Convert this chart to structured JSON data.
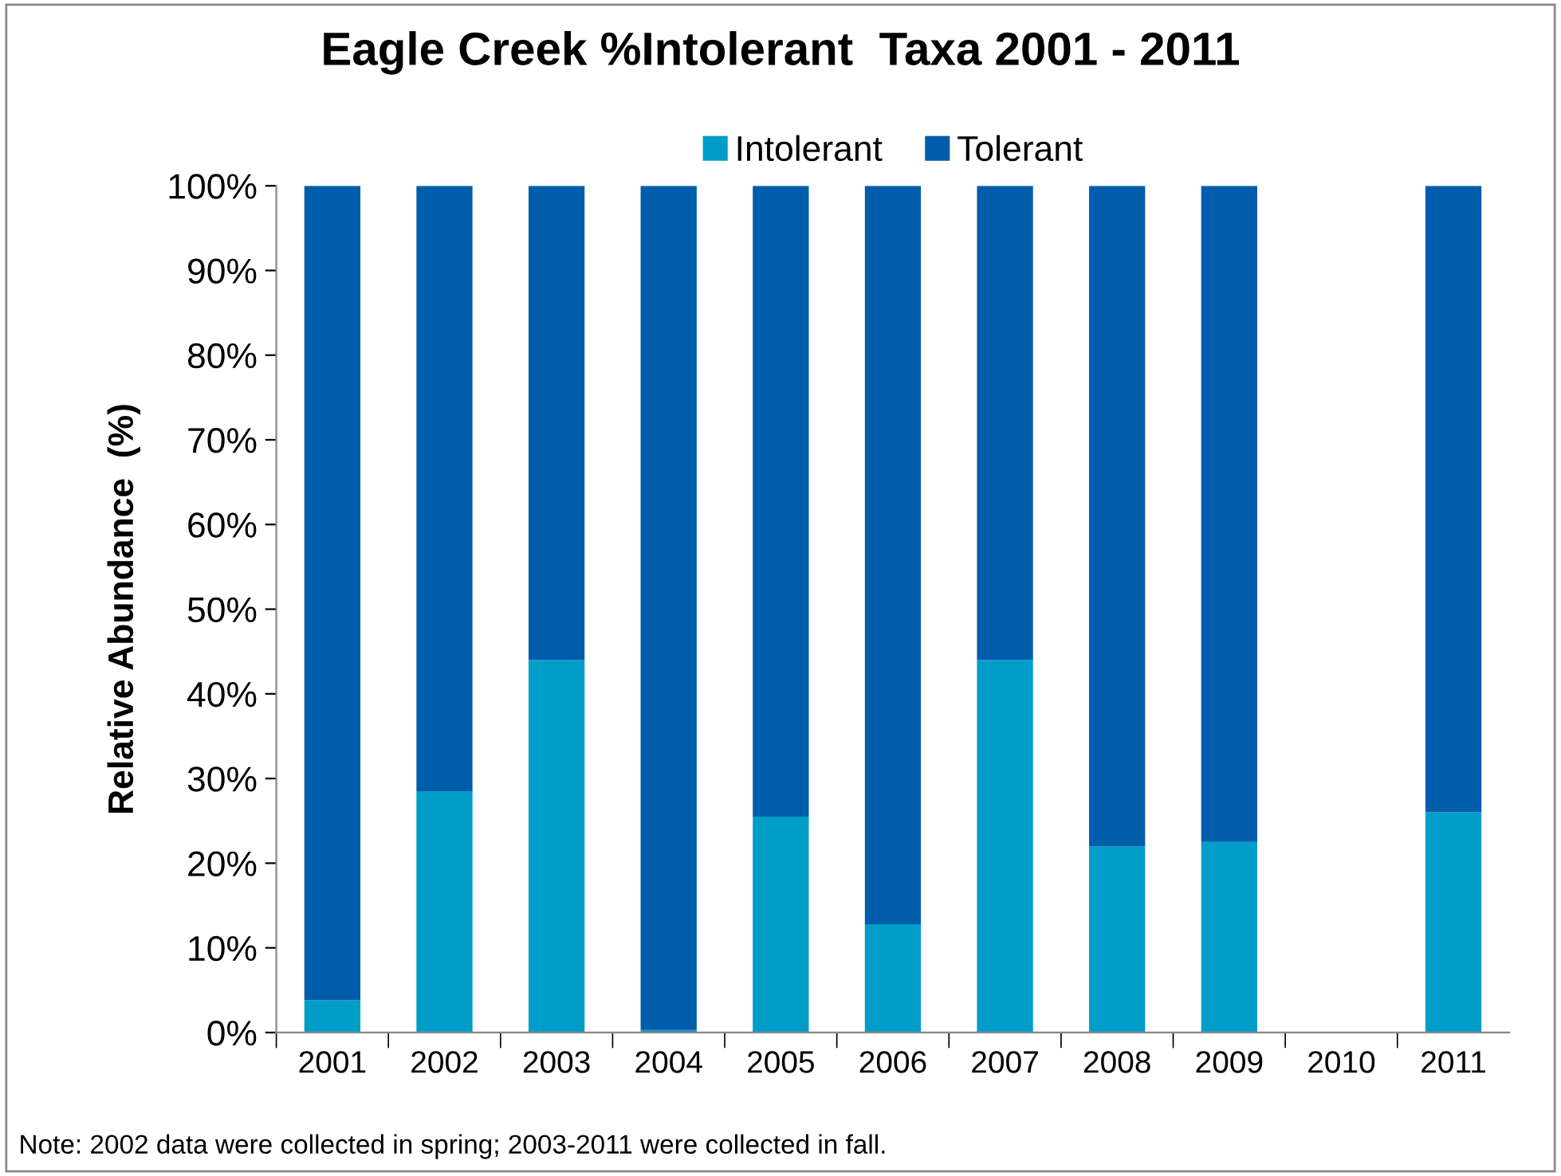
{
  "chart_data": {
    "type": "bar",
    "stacked": true,
    "title": "Eagle Creek %Intolerant  Taxa 2001 - 2011",
    "ylabel": "Relative Abundance  (%)",
    "categories": [
      "2001",
      "2002",
      "2003",
      "2004",
      "2005",
      "2006",
      "2007",
      "2008",
      "2009",
      "2010",
      "2011"
    ],
    "series": [
      {
        "name": "Intolerant",
        "color": "#009dc8",
        "values": [
          3.8,
          28.5,
          44,
          0.3,
          25.5,
          12.8,
          44,
          22,
          22.5,
          null,
          26
        ]
      },
      {
        "name": "Tolerant",
        "color": "#005dab",
        "values": [
          96.2,
          71.5,
          56,
          99.7,
          74.5,
          87.2,
          56,
          78,
          77.5,
          null,
          74
        ]
      }
    ],
    "ylim": [
      0,
      100
    ],
    "yticks": [
      {
        "value": 0,
        "label": "0%"
      },
      {
        "value": 10,
        "label": "10%"
      },
      {
        "value": 20,
        "label": "20%"
      },
      {
        "value": 30,
        "label": "30%"
      },
      {
        "value": 40,
        "label": "40%"
      },
      {
        "value": 50,
        "label": "50%"
      },
      {
        "value": 60,
        "label": "60%"
      },
      {
        "value": 70,
        "label": "70%"
      },
      {
        "value": 80,
        "label": "80%"
      },
      {
        "value": 90,
        "label": "90%"
      },
      {
        "value": 100,
        "label": "100%"
      }
    ],
    "grid": false,
    "legend": "top",
    "annotations": [
      "Note: 2002 data were collected in spring; 2003-2011 were collected in fall."
    ]
  }
}
